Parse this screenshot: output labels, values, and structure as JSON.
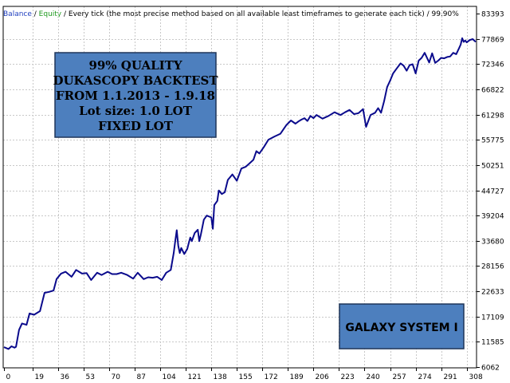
{
  "header": {
    "balance_label": "Balance",
    "separator": " / ",
    "equity_label": "Equity",
    "model_text": " / Every tick (the most precise method based on all available least timeframes to generate each tick) / 99.90%"
  },
  "colors": {
    "balance": "#1f3fbf",
    "equity": "#1e9a1e",
    "line": "#0a0a8c",
    "grid": "#c8c8c8",
    "box_fill": "#4d7fbe",
    "box_border": "#1f3559"
  },
  "annotation_box": {
    "lines": [
      "99% QUALITY",
      "DUKASCOPY BACKTEST",
      "FROM 1.1.2013 - 1.9.18",
      "Lot size: 1.0 LOT",
      "FIXED LOT"
    ]
  },
  "label_box": {
    "text": "GALAXY SYSTEM I"
  },
  "chart_data": {
    "type": "line",
    "x_ticks": [
      "0",
      "19",
      "36",
      "53",
      "70",
      "87",
      "104",
      "121",
      "138",
      "155",
      "172",
      "189",
      "206",
      "223",
      "240",
      "257",
      "274",
      "291",
      "308"
    ],
    "y_ticks": [
      "83393",
      "77869",
      "72346",
      "66822",
      "61298",
      "55775",
      "50251",
      "44727",
      "39204",
      "33680",
      "28156",
      "22633",
      "17109",
      "11585",
      "6062"
    ],
    "xlim": [
      0,
      314
    ],
    "ylim": [
      6062,
      83393
    ],
    "grid": true,
    "series": [
      {
        "name": "Balance",
        "x": [
          0,
          3,
          5,
          7,
          8,
          10,
          12,
          15,
          17,
          20,
          24,
          27,
          30,
          33,
          35,
          38,
          41,
          45,
          48,
          52,
          55,
          58,
          62,
          65,
          69,
          72,
          75,
          78,
          82,
          86,
          89,
          93,
          96,
          99,
          102,
          105,
          108,
          111,
          113,
          114,
          115,
          116,
          117,
          118,
          120,
          122,
          123,
          124,
          125,
          127,
          129,
          130,
          131,
          133,
          135,
          138,
          139,
          140,
          142,
          143,
          145,
          147,
          149,
          152,
          155,
          158,
          161,
          164,
          166,
          168,
          170,
          173,
          176,
          180,
          184,
          188,
          191,
          194,
          196,
          198,
          200,
          202,
          204,
          206,
          208,
          212,
          216,
          220,
          224,
          227,
          230,
          233,
          236,
          239,
          241,
          244,
          247,
          249,
          251,
          253,
          255,
          257,
          259,
          261,
          264,
          266,
          268,
          270,
          272,
          274,
          276,
          278,
          280,
          283,
          285,
          287,
          289,
          291,
          293,
          295,
          297,
          299,
          301,
          303,
          304,
          305,
          306,
          307,
          308,
          310,
          312,
          314
        ],
        "values": [
          10400,
          10000,
          10600,
          10300,
          10500,
          14200,
          15600,
          15300,
          17800,
          17500,
          18300,
          22300,
          22500,
          22800,
          25300,
          26500,
          26900,
          25800,
          27300,
          26500,
          26600,
          25100,
          26700,
          26200,
          26900,
          26400,
          26400,
          26700,
          26200,
          25400,
          26700,
          25300,
          25700,
          25600,
          25800,
          25100,
          26700,
          27300,
          31000,
          33600,
          36000,
          32600,
          31000,
          32100,
          30800,
          31900,
          33200,
          34400,
          33600,
          35400,
          36100,
          33600,
          35000,
          38300,
          39200,
          38800,
          36300,
          41500,
          42400,
          44700,
          43900,
          44300,
          47000,
          48200,
          46800,
          49500,
          49900,
          50800,
          51400,
          53300,
          52800,
          54200,
          55800,
          56500,
          57100,
          59000,
          60000,
          59300,
          59800,
          60200,
          60500,
          59900,
          61000,
          60500,
          61200,
          60400,
          61000,
          61800,
          61200,
          61800,
          62300,
          61400,
          61600,
          62500,
          58600,
          61200,
          61700,
          62700,
          61700,
          64200,
          67300,
          68700,
          70300,
          71200,
          72500,
          72000,
          70900,
          72100,
          72300,
          70300,
          73100,
          73700,
          74800,
          72700,
          74700,
          72600,
          73100,
          73700,
          73600,
          73900,
          74000,
          74800,
          74500,
          75900,
          76600,
          78000,
          77200,
          77500,
          77100,
          77600,
          77800,
          77200
        ]
      }
    ]
  }
}
